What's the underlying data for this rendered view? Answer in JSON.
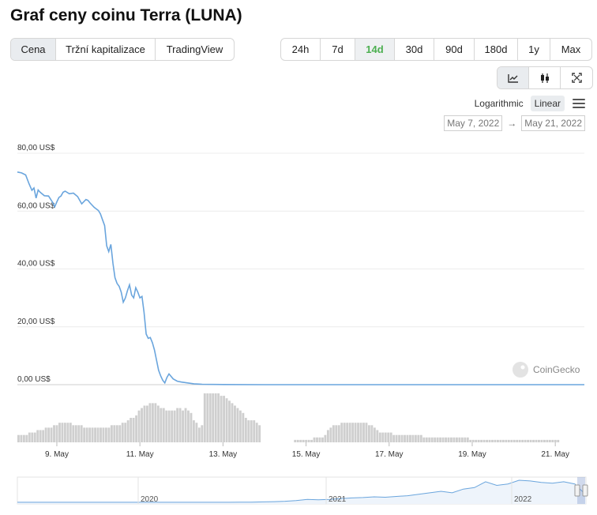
{
  "page_title": "Graf ceny coinu Terra (LUNA)",
  "metric_tabs": [
    {
      "label": "Cena",
      "active": true
    },
    {
      "label": "Tržní kapitalizace",
      "active": false
    },
    {
      "label": "TradingView",
      "active": false
    }
  ],
  "range_tabs": [
    {
      "label": "24h",
      "active": false
    },
    {
      "label": "7d",
      "active": false
    },
    {
      "label": "14d",
      "active": true
    },
    {
      "label": "30d",
      "active": false
    },
    {
      "label": "90d",
      "active": false
    },
    {
      "label": "180d",
      "active": false
    },
    {
      "label": "1y",
      "active": false
    },
    {
      "label": "Max",
      "active": false
    }
  ],
  "chart_type_icons": [
    "line-chart-icon",
    "candlestick-icon",
    "fullscreen-icon"
  ],
  "scale_options": {
    "logarithmic": "Logarithmic",
    "linear": "Linear",
    "active": "linear"
  },
  "date_range": {
    "from": "May 7, 2022",
    "arrow": "→",
    "to": "May 21, 2022"
  },
  "watermark": "CoinGecko",
  "colors": {
    "line": "#6aa5dd",
    "volume": "#cfcfcf",
    "active_tab_text": "#4caf50"
  },
  "chart_data": {
    "type": "line",
    "y_ticks": [
      "80,00 US$",
      "60,00 US$",
      "40,00 US$",
      "20,00 US$",
      "0,00 US$"
    ],
    "ylim": [
      0,
      80
    ],
    "x_ticks": [
      "9. May",
      "11. May",
      "13. May",
      "15. May",
      "17. May",
      "19. May",
      "21. May"
    ],
    "x_tick_days": [
      9,
      11,
      13,
      15,
      17,
      19,
      21
    ],
    "xlim": [
      8.05,
      21.7
    ],
    "series": [
      {
        "values_x": [
          8.05,
          8.15,
          8.25,
          8.33,
          8.4,
          8.45,
          8.5,
          8.55,
          8.6,
          8.7,
          8.8,
          8.9,
          8.95,
          9.0,
          9.05,
          9.1,
          9.15,
          9.2,
          9.3,
          9.4,
          9.5,
          9.6,
          9.7,
          9.75,
          9.8,
          9.9,
          10.0,
          10.05,
          10.1,
          10.15,
          10.2,
          10.25,
          10.3,
          10.35,
          10.4,
          10.45,
          10.5,
          10.55,
          10.6,
          10.65,
          10.7,
          10.75,
          10.8,
          10.85,
          10.9,
          10.95,
          11.0,
          11.05,
          11.1,
          11.15,
          11.2,
          11.25,
          11.3,
          11.35,
          11.4,
          11.45,
          11.5,
          11.55,
          11.6,
          11.65,
          11.7,
          11.8,
          11.9,
          12.0,
          12.1,
          12.2,
          12.3,
          12.5,
          13.0,
          14.0,
          16.0,
          18.0,
          20.0,
          21.7
        ],
        "values_y": [
          73.5,
          73.2,
          72.5,
          69.5,
          67.2,
          68.0,
          64.5,
          67.3,
          66.5,
          65.3,
          65.2,
          63.0,
          61.5,
          63.2,
          64.7,
          65.2,
          66.5,
          66.9,
          66.0,
          66.2,
          65.0,
          62.5,
          64.0,
          63.7,
          62.8,
          61.3,
          60.2,
          59.0,
          57.0,
          55.0,
          48.0,
          46.0,
          48.5,
          42.0,
          37.0,
          35.0,
          34.0,
          32.0,
          28.5,
          30.0,
          32.5,
          34.5,
          31.0,
          30.0,
          33.5,
          32.0,
          30.0,
          30.5,
          25.0,
          17.5,
          16.0,
          16.3,
          14.5,
          12.0,
          8.5,
          5.0,
          3.0,
          1.5,
          0.6,
          2.5,
          3.7,
          2.0,
          1.2,
          0.9,
          0.7,
          0.5,
          0.3,
          0.15,
          0.05,
          0.01,
          0.0,
          0.0,
          0.0,
          0.0
        ]
      }
    ],
    "volume_series": [
      3,
      3,
      3,
      3,
      4,
      4,
      4,
      5,
      5,
      5,
      6,
      6,
      6,
      7,
      7,
      8,
      8,
      8,
      8,
      8,
      7,
      7,
      7,
      7,
      6,
      6,
      6,
      6,
      6,
      6,
      6,
      6,
      6,
      6,
      7,
      7,
      7,
      7,
      8,
      8,
      9,
      10,
      10,
      11,
      13,
      14,
      15,
      15,
      16,
      16,
      16,
      15,
      14,
      14,
      13,
      13,
      13,
      13,
      14,
      14,
      13,
      14,
      13,
      12,
      9,
      8,
      6,
      7,
      20,
      20,
      20,
      20,
      20,
      20,
      19,
      19,
      18,
      17,
      16,
      15,
      14,
      13,
      12,
      10,
      9,
      9,
      9,
      8,
      7,
      0,
      0,
      0,
      0,
      0,
      0,
      0,
      0,
      0,
      0,
      0,
      0,
      1,
      1,
      1,
      1,
      1,
      1,
      1,
      2,
      2,
      2,
      2,
      3,
      5,
      6,
      7,
      7,
      7,
      8,
      8,
      8,
      8,
      8,
      8,
      8,
      8,
      8,
      8,
      7,
      7,
      6,
      5,
      4,
      4,
      4,
      4,
      4,
      3,
      3,
      3,
      3,
      3,
      3,
      3,
      3,
      3,
      3,
      3,
      2,
      2,
      2,
      2,
      2,
      2,
      2,
      2,
      2,
      2,
      2,
      2,
      2,
      2,
      2,
      2,
      2,
      1,
      1,
      1,
      1,
      1,
      1,
      1,
      1,
      1,
      1,
      1,
      1,
      1,
      1,
      1,
      1,
      1,
      1,
      1,
      1,
      1,
      1,
      1,
      1,
      1,
      1,
      1,
      1,
      1,
      1,
      1,
      1,
      1,
      0,
      0,
      0,
      0,
      0,
      0,
      0,
      0,
      0
    ],
    "navigator": {
      "year_labels": [
        "2020",
        "2021",
        "2022"
      ],
      "series": [
        0.1,
        0.1,
        0.1,
        0.1,
        0.1,
        0.1,
        0.1,
        0.1,
        0.1,
        0.1,
        0.1,
        0.1,
        0.1,
        0.1,
        0.1,
        0.1,
        0.1,
        0.1,
        0.1,
        0.1,
        0.2,
        0.3,
        0.6,
        1.0,
        1.5,
        2.5,
        4.0,
        3.5,
        4.0,
        5.0,
        6.0,
        6.5,
        7.5,
        7.0,
        8.0,
        9.0,
        11.0,
        13.0,
        15.0,
        13.0,
        18.0,
        20.0,
        28.0,
        23.0,
        25.0,
        30.0,
        29.0,
        27.0,
        26.0,
        28.0,
        25.0,
        10.0
      ]
    }
  }
}
